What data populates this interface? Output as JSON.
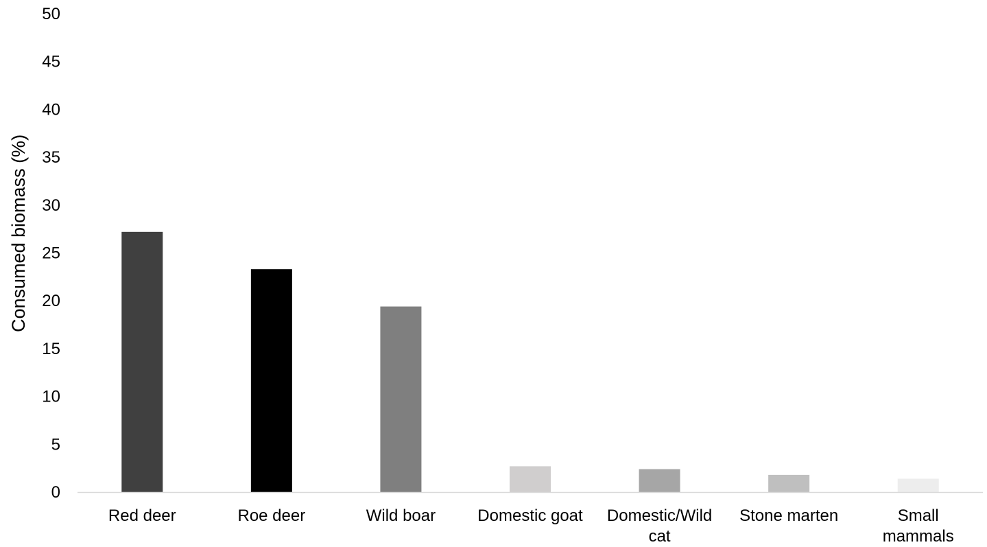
{
  "chart_data": {
    "type": "bar",
    "title": "",
    "xlabel": "",
    "ylabel": "Consumed biomass (%)",
    "ylim": [
      0,
      50
    ],
    "yticks": [
      0,
      5,
      10,
      15,
      20,
      25,
      30,
      35,
      40,
      45,
      50
    ],
    "grid": false,
    "legend": "none",
    "categories": [
      [
        "Red deer"
      ],
      [
        "Roe deer"
      ],
      [
        "Wild boar"
      ],
      [
        "Domestic goat"
      ],
      [
        "Domestic/Wild",
        "cat"
      ],
      [
        "Stone marten"
      ],
      [
        "Small",
        "mammals"
      ]
    ],
    "values": [
      27.2,
      23.3,
      19.4,
      2.7,
      2.4,
      1.8,
      1.4
    ],
    "colors": [
      "#404040",
      "#000000",
      "#7f7f7f",
      "#d0cece",
      "#a6a6a6",
      "#bfbfbf",
      "#ededed"
    ],
    "axis_color": "#d9d9d9"
  }
}
